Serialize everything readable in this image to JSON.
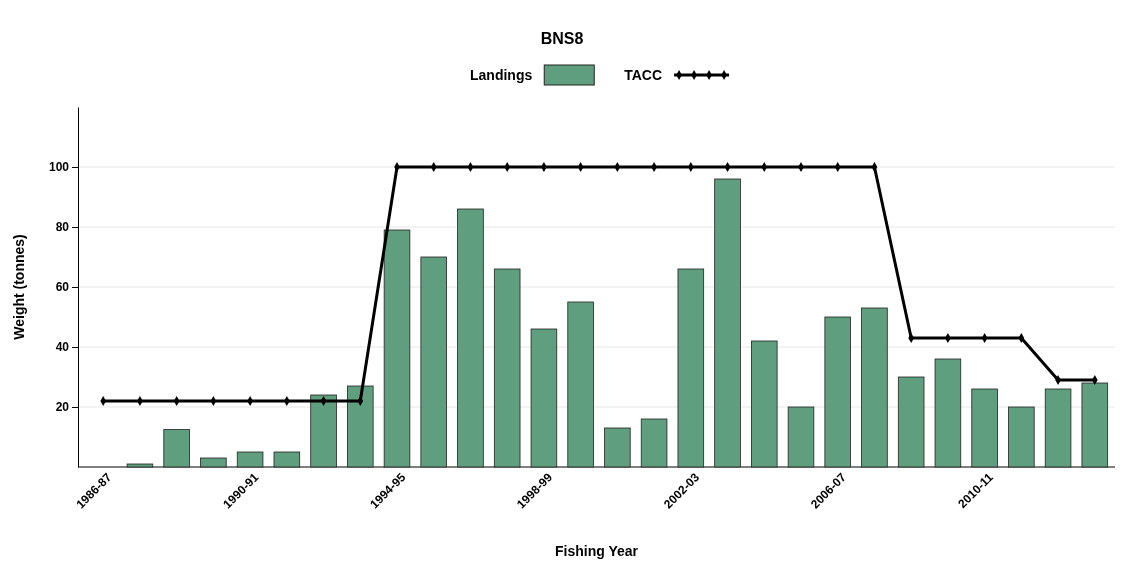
{
  "chart_data": {
    "type": "bar",
    "title": "BNS8",
    "xlabel": "Fishing Year",
    "ylabel": "Weight (tonnes)",
    "categories": [
      "1986-87",
      null,
      null,
      null,
      "1990-91",
      null,
      null,
      null,
      "1994-95",
      null,
      null,
      null,
      "1998-99",
      null,
      null,
      null,
      "2002-03",
      null,
      null,
      null,
      "2006-07",
      null,
      null,
      null,
      "2010-11",
      null,
      null,
      null
    ],
    "series": [
      {
        "name": "Landings",
        "type": "bar",
        "color": "#5f9e7e",
        "values": [
          0,
          1,
          12.5,
          3,
          5,
          5,
          24,
          27,
          79,
          70,
          86,
          66,
          46,
          55,
          13,
          16,
          66,
          96,
          42,
          20,
          50,
          53,
          30,
          36,
          26,
          20,
          26,
          28
        ]
      },
      {
        "name": "TACC",
        "type": "line",
        "color": "#000000",
        "marker": "diamond",
        "values": [
          22,
          22,
          22,
          22,
          22,
          22,
          22,
          22,
          100,
          100,
          100,
          100,
          100,
          100,
          100,
          100,
          100,
          100,
          100,
          100,
          100,
          100,
          43,
          43,
          43,
          43,
          29,
          29
        ]
      }
    ],
    "ylim": [
      0,
      120
    ],
    "yticks": [
      20,
      40,
      60,
      80,
      100
    ],
    "grid": "y",
    "legend": "top"
  }
}
